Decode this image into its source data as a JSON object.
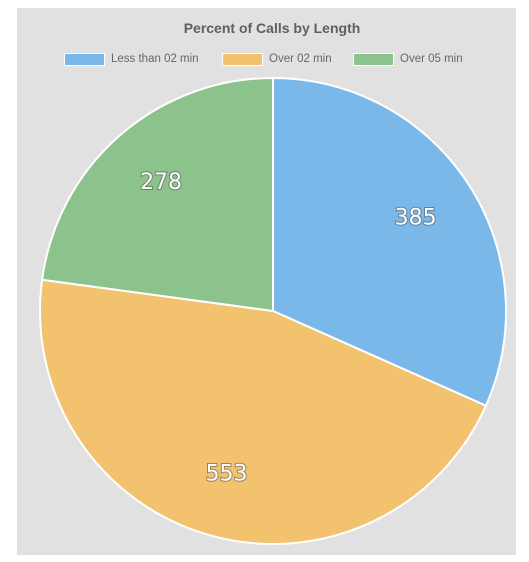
{
  "chart_data": {
    "type": "pie",
    "title": "Percent of Calls by Length",
    "legend_position": "top",
    "categories": [
      "Less than 02 min",
      "Over 02 min",
      "Over 05 min"
    ],
    "values": [
      385,
      553,
      278
    ],
    "data_labels": [
      "385",
      "553",
      "278"
    ],
    "colors": [
      "#7ab8ea",
      "#f2c26f",
      "#8cc28b"
    ],
    "start_angle": "12 o'clock",
    "direction": "clockwise"
  }
}
